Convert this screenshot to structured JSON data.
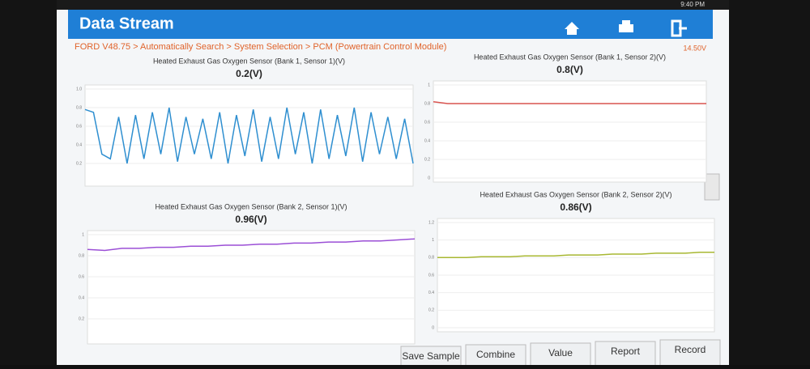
{
  "status_bar": {
    "time": "9:40 PM"
  },
  "header": {
    "title": "Data Stream"
  },
  "breadcrumb": "FORD V48.75 > Automatically Search > System Selection > PCM (Powertrain Control Module)",
  "battery_voltage": "14.50V",
  "buttons": [
    "Save Sample",
    "Combine",
    "Value",
    "Report",
    "Record"
  ],
  "chart_data": [
    {
      "type": "line",
      "title": "Heated Exhaust Gas Oxygen Sensor (Bank 1, Sensor 1)(V)",
      "subtitle": "0.2(V)",
      "color": "#2f8fd0",
      "values": [
        0.78,
        0.75,
        0.3,
        0.25,
        0.7,
        0.2,
        0.72,
        0.25,
        0.75,
        0.3,
        0.8,
        0.22,
        0.7,
        0.3,
        0.68,
        0.25,
        0.75,
        0.2,
        0.72,
        0.28,
        0.78,
        0.22,
        0.7,
        0.25,
        0.8,
        0.3,
        0.75,
        0.2,
        0.78,
        0.25,
        0.72,
        0.28,
        0.8,
        0.22,
        0.75,
        0.3,
        0.7,
        0.25,
        0.68,
        0.2
      ],
      "ylim": [
        0,
        1
      ],
      "yticks": [
        0.2,
        0.4,
        0.6,
        0.8,
        {
          "value": 1,
          "label": "1.0"
        }
      ],
      "grid": true
    },
    {
      "type": "line",
      "title": "Heated Exhaust Gas Oxygen Sensor (Bank 1, Sensor 2)(V)",
      "subtitle": "0.8(V)",
      "color": "#d9534f",
      "values": [
        0.82,
        0.8,
        0.8,
        0.8,
        0.8,
        0.8,
        0.8,
        0.8,
        0.8,
        0.8,
        0.8,
        0.8,
        0.8,
        0.8,
        0.8,
        0.8,
        0.8,
        0.8,
        0.8,
        0.8
      ],
      "ylim": [
        0,
        1
      ],
      "yticks": [
        0,
        0.2,
        0.4,
        0.6,
        0.8,
        1
      ],
      "grid": true
    },
    {
      "type": "line",
      "title": "Heated Exhaust Gas Oxygen Sensor (Bank 2, Sensor 1)(V)",
      "subtitle": "0.96(V)",
      "color": "#9b4fd6",
      "values": [
        0.86,
        0.85,
        0.87,
        0.87,
        0.88,
        0.88,
        0.89,
        0.89,
        0.9,
        0.9,
        0.91,
        0.91,
        0.92,
        0.92,
        0.93,
        0.93,
        0.94,
        0.94,
        0.95,
        0.96
      ],
      "ylim": [
        0,
        1
      ],
      "yticks": [
        0.2,
        0.4,
        0.6,
        0.8,
        1
      ],
      "grid": true
    },
    {
      "type": "line",
      "title": "Heated Exhaust Gas Oxygen Sensor (Bank 2, Sensor 2)(V)",
      "subtitle": "0.86(V)",
      "color": "#a8b832",
      "values": [
        0.8,
        0.8,
        0.8,
        0.81,
        0.81,
        0.81,
        0.82,
        0.82,
        0.82,
        0.83,
        0.83,
        0.83,
        0.84,
        0.84,
        0.84,
        0.85,
        0.85,
        0.85,
        0.86,
        0.86
      ],
      "ylim": [
        0,
        1.2
      ],
      "yticks": [
        0,
        0.2,
        0.4,
        0.6,
        0.8,
        1,
        1.2
      ],
      "grid": true
    }
  ]
}
